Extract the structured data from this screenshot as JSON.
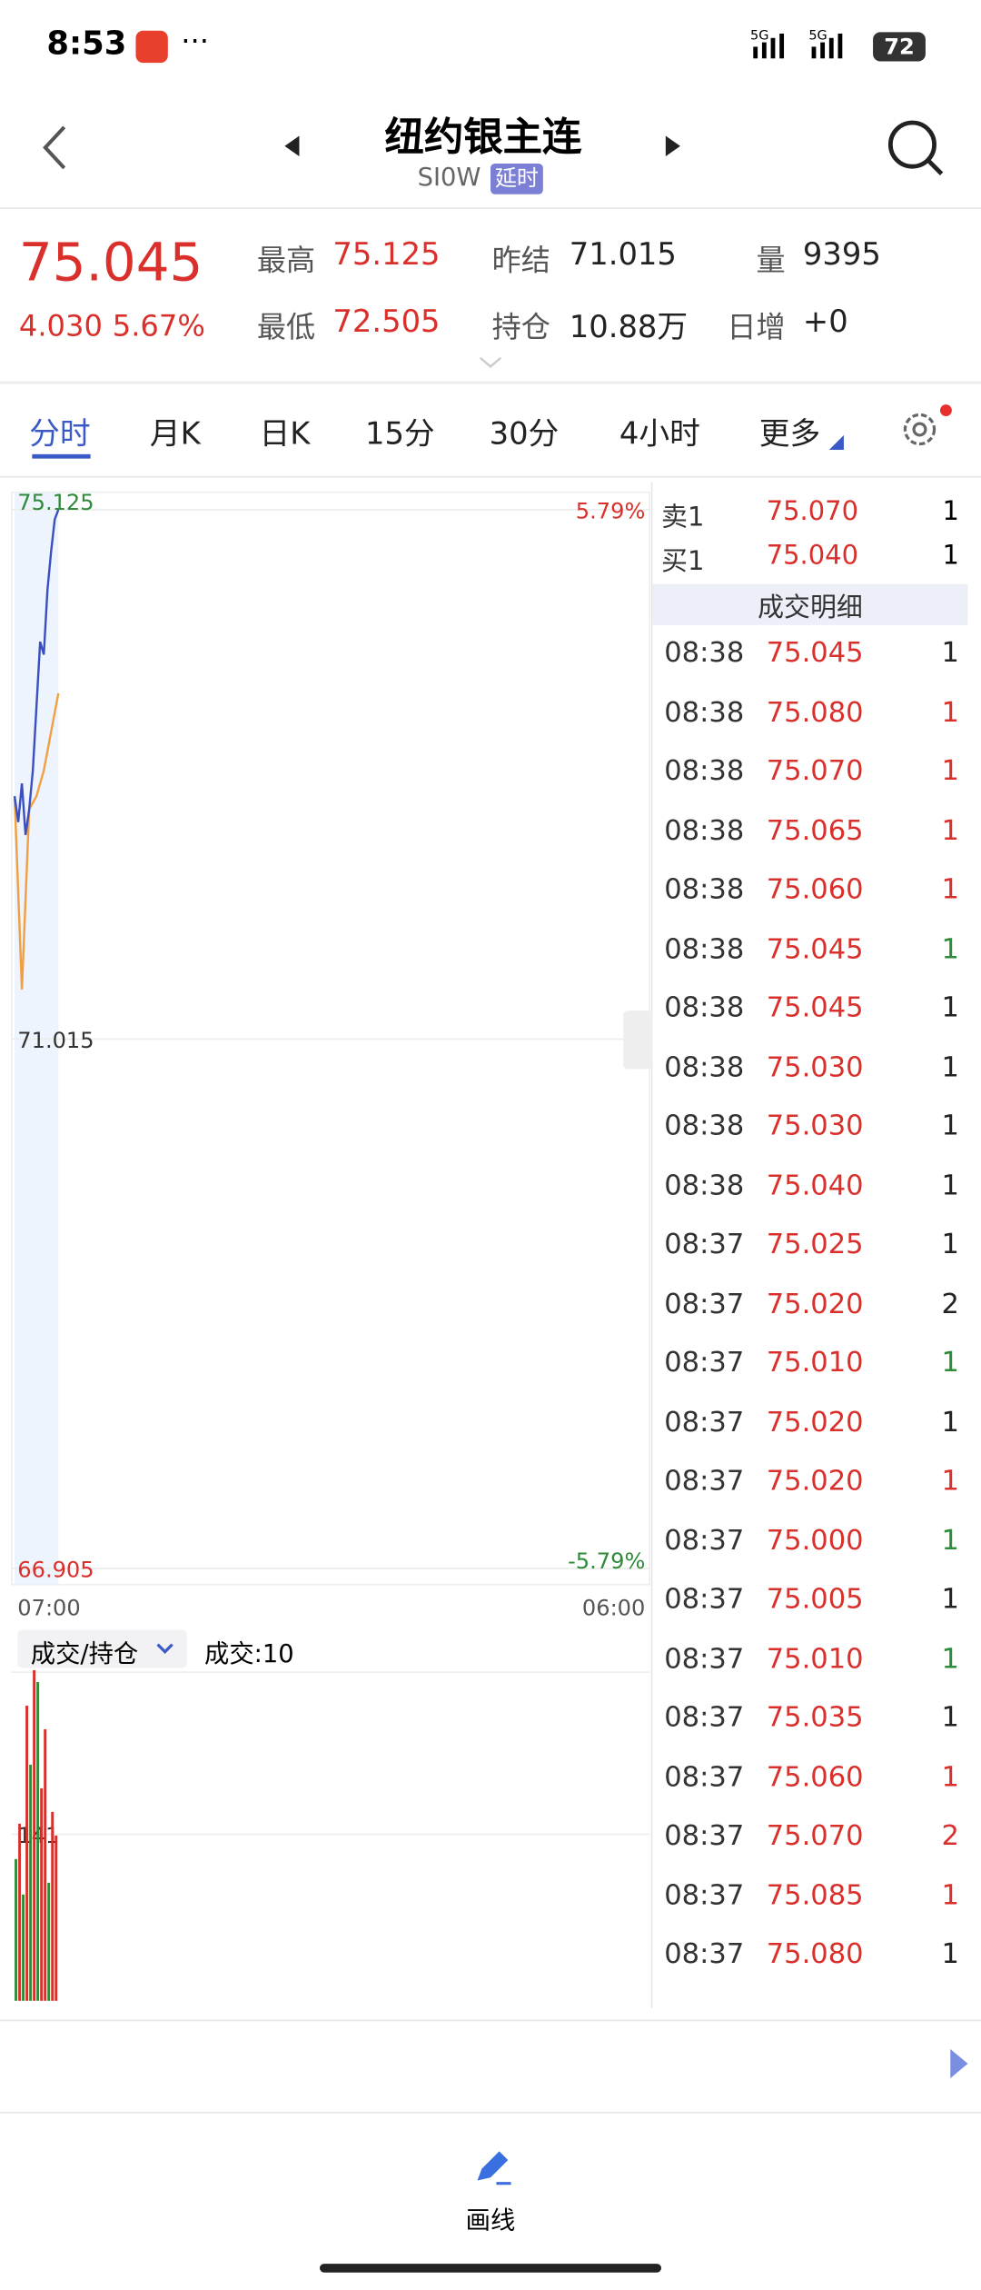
{
  "status_bar": {
    "time": "8:53",
    "battery": "72"
  },
  "header": {
    "title": "纽约银主连",
    "code": "SI0W",
    "badge": "延时"
  },
  "quote": {
    "price": "75.045",
    "change": "4.030",
    "change_pct": "5.67%",
    "stats": [
      {
        "label": "最高",
        "value": "75.125",
        "color": "#d9302c"
      },
      {
        "label": "昨结",
        "value": "71.015",
        "color": "#222222"
      },
      {
        "label": "量",
        "value": "9395",
        "color": "#222222"
      },
      {
        "label": "最低",
        "value": "72.505",
        "color": "#d9302c"
      },
      {
        "label": "持仓",
        "value": "10.88万",
        "color": "#222222"
      },
      {
        "label": "日增",
        "value": "+0",
        "color": "#222222"
      }
    ]
  },
  "tabs": [
    "分时",
    "月K",
    "日K",
    "15分",
    "30分",
    "4小时",
    "更多"
  ],
  "intraday": {
    "ylim": [
      66.905,
      75.125
    ],
    "yticks": [
      66.905,
      71.015,
      75.125
    ],
    "pct_ticks": [
      {
        "value": -5.79,
        "label": "-5.79%"
      },
      {
        "value": 5.79,
        "label": "5.79%"
      }
    ],
    "time_start": "07:00",
    "time_end": "06:00",
    "price": [
      72.9,
      72.7,
      73.0,
      72.6,
      72.8,
      73.1,
      73.6,
      74.1,
      74.0,
      74.5,
      74.8,
      75.05,
      75.125
    ],
    "price_color": "#3a4fc0",
    "avg": [
      72.9,
      71.4,
      72.8,
      72.9,
      73.1,
      73.4,
      73.7
    ],
    "avg_color": "#f0a040"
  },
  "volume": {
    "selector": "成交/持仓",
    "current": "成交:10",
    "yticks": [
      141
    ],
    "ylim": [
      0,
      282
    ],
    "values": [
      120,
      150,
      90,
      250,
      200,
      280,
      270,
      180,
      230,
      100,
      160,
      140
    ],
    "colors": [
      "#2e8b3a",
      "#d9302c",
      "#2e8b3a",
      "#d9302c",
      "#2e8b3a",
      "#d9302c",
      "#2e8b3a",
      "#d9302c",
      "#d9302c",
      "#2e8b3a",
      "#d9302c",
      "#d9302c"
    ]
  },
  "order_book": [
    {
      "side": "卖1",
      "price": "75.070",
      "volume": "1"
    },
    {
      "side": "买1",
      "price": "75.040",
      "volume": "1"
    }
  ],
  "trades_title": "成交明细",
  "trades": [
    {
      "time": "08:38",
      "price": "75.045",
      "volume": "1",
      "color": "#222222"
    },
    {
      "time": "08:38",
      "price": "75.080",
      "volume": "1",
      "color": "#d9302c"
    },
    {
      "time": "08:38",
      "price": "75.070",
      "volume": "1",
      "color": "#d9302c"
    },
    {
      "time": "08:38",
      "price": "75.065",
      "volume": "1",
      "color": "#d9302c"
    },
    {
      "time": "08:38",
      "price": "75.060",
      "volume": "1",
      "color": "#d9302c"
    },
    {
      "time": "08:38",
      "price": "75.045",
      "volume": "1",
      "color": "#2e8b3a"
    },
    {
      "time": "08:38",
      "price": "75.045",
      "volume": "1",
      "color": "#222222"
    },
    {
      "time": "08:38",
      "price": "75.030",
      "volume": "1",
      "color": "#222222"
    },
    {
      "time": "08:38",
      "price": "75.030",
      "volume": "1",
      "color": "#222222"
    },
    {
      "time": "08:38",
      "price": "75.040",
      "volume": "1",
      "color": "#222222"
    },
    {
      "time": "08:37",
      "price": "75.025",
      "volume": "1",
      "color": "#222222"
    },
    {
      "time": "08:37",
      "price": "75.020",
      "volume": "2",
      "color": "#222222"
    },
    {
      "time": "08:37",
      "price": "75.010",
      "volume": "1",
      "color": "#2e8b3a"
    },
    {
      "time": "08:37",
      "price": "75.020",
      "volume": "1",
      "color": "#222222"
    },
    {
      "time": "08:37",
      "price": "75.020",
      "volume": "1",
      "color": "#d9302c"
    },
    {
      "time": "08:37",
      "price": "75.000",
      "volume": "1",
      "color": "#2e8b3a"
    },
    {
      "time": "08:37",
      "price": "75.005",
      "volume": "1",
      "color": "#222222"
    },
    {
      "time": "08:37",
      "price": "75.010",
      "volume": "1",
      "color": "#2e8b3a"
    },
    {
      "time": "08:37",
      "price": "75.035",
      "volume": "1",
      "color": "#222222"
    },
    {
      "time": "08:37",
      "price": "75.060",
      "volume": "1",
      "color": "#d9302c"
    },
    {
      "time": "08:37",
      "price": "75.070",
      "volume": "2",
      "color": "#d9302c"
    },
    {
      "time": "08:37",
      "price": "75.085",
      "volume": "1",
      "color": "#d9302c"
    },
    {
      "time": "08:37",
      "price": "75.080",
      "volume": "1",
      "color": "#222222"
    }
  ],
  "footer": {
    "tool": "画线"
  }
}
